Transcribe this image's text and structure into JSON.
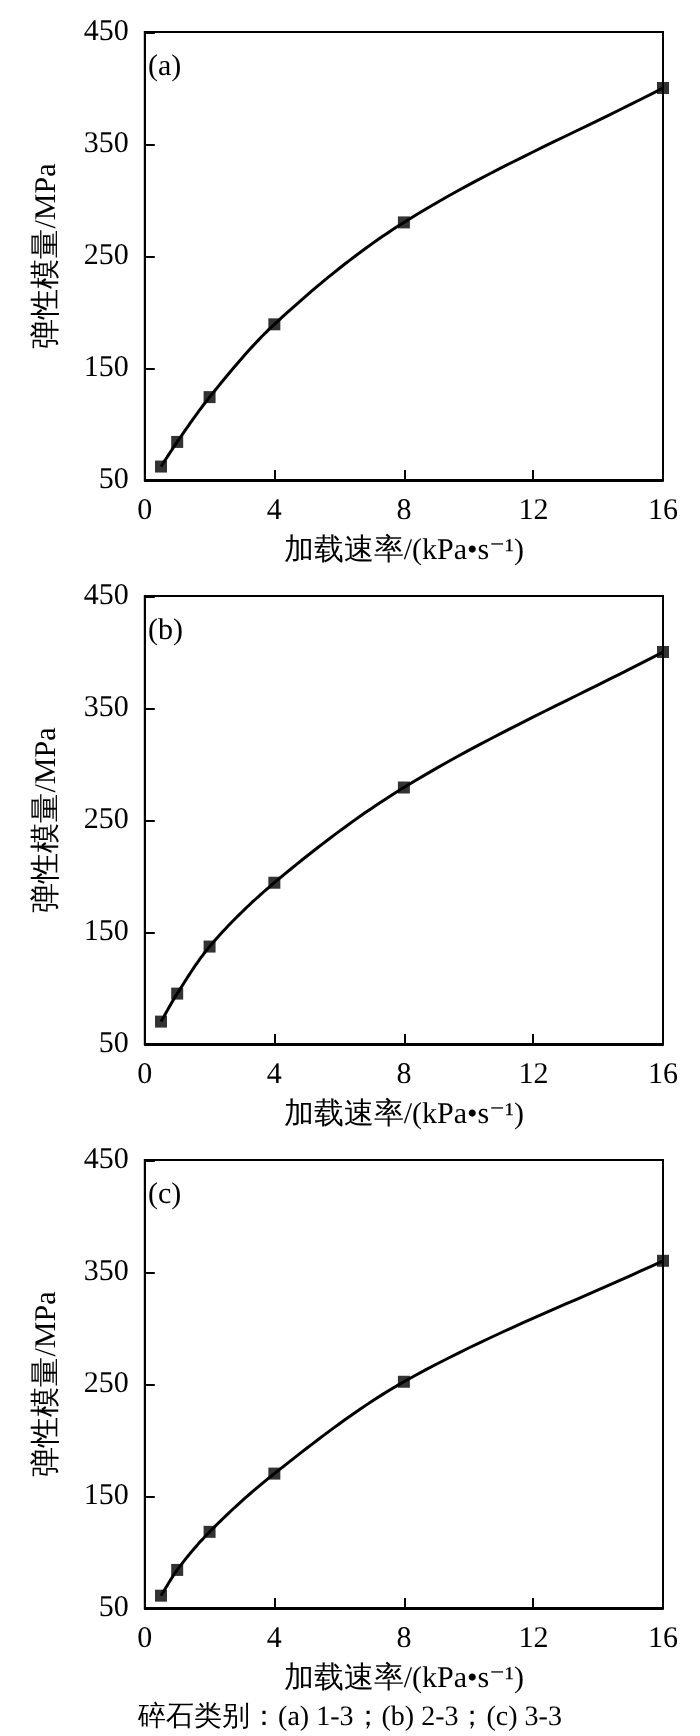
{
  "chart_data": [
    {
      "type": "line",
      "annotations": [
        "(a)"
      ],
      "xlabel": "加载速率/(kPa•s⁻¹)",
      "ylabel": "弹性模量/MPa",
      "x": [
        0.5,
        1,
        2,
        4,
        8,
        16
      ],
      "series": [
        {
          "color": "#000000",
          "values": [
            62,
            84,
            124,
            189,
            280,
            400
          ]
        }
      ],
      "xlim": [
        0,
        16
      ],
      "xticks": [
        0,
        4,
        8,
        12,
        16
      ],
      "ylim": [
        50,
        450
      ],
      "yticks": [
        50,
        150,
        250,
        350,
        450
      ],
      "grid": false,
      "marker": "square",
      "line_style": "solid"
    },
    {
      "type": "line",
      "annotations": [
        "(b)"
      ],
      "xlabel": "加载速率/(kPa•s⁻¹)",
      "ylabel": "弹性模量/MPa",
      "x": [
        0.5,
        1,
        2,
        4,
        8,
        16
      ],
      "series": [
        {
          "color": "#000000",
          "values": [
            70,
            95,
            137,
            194,
            279,
            400
          ]
        }
      ],
      "xlim": [
        0,
        16
      ],
      "xticks": [
        0,
        4,
        8,
        12,
        16
      ],
      "ylim": [
        50,
        450
      ],
      "yticks": [
        50,
        150,
        250,
        350,
        450
      ],
      "grid": false,
      "marker": "square",
      "line_style": "solid"
    },
    {
      "type": "line",
      "annotations": [
        "(c)",
        "碎石类别：(a) 1-3；(b) 2-3；(c) 3-3"
      ],
      "xlabel": "加载速率/(kPa•s⁻¹)",
      "ylabel": "弹性模量/MPa",
      "x": [
        0.5,
        1,
        2,
        4,
        8,
        16
      ],
      "series": [
        {
          "color": "#000000",
          "values": [
            61,
            84,
            118,
            170,
            252,
            360
          ]
        }
      ],
      "xlim": [
        0,
        16
      ],
      "xticks": [
        0,
        4,
        8,
        12,
        16
      ],
      "ylim": [
        50,
        450
      ],
      "yticks": [
        50,
        150,
        250,
        350,
        450
      ],
      "grid": false,
      "marker": "square",
      "line_style": "solid"
    }
  ]
}
